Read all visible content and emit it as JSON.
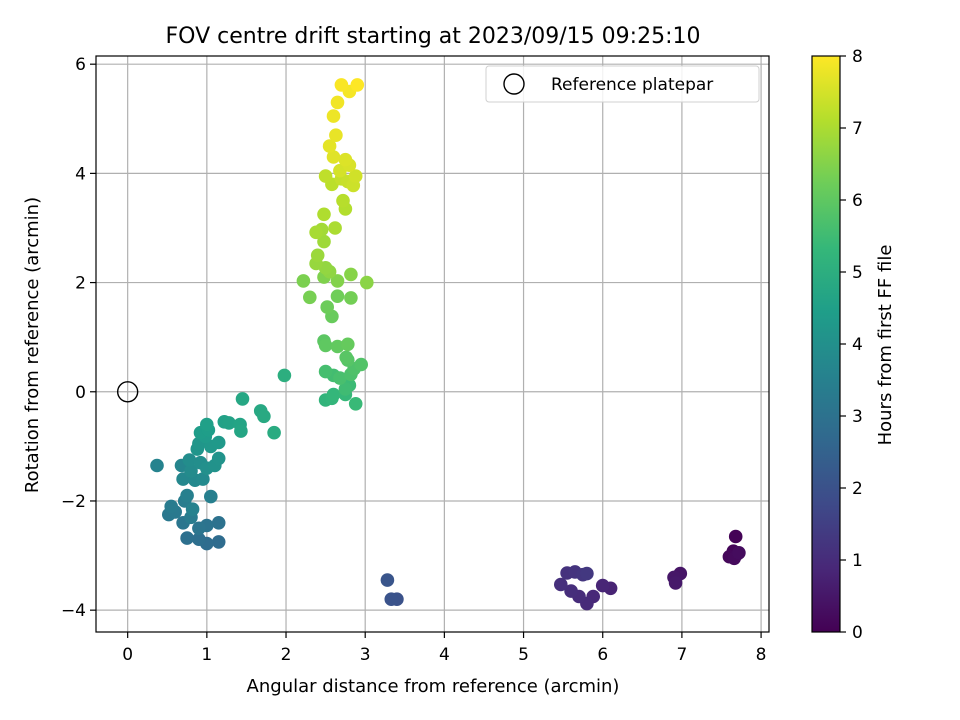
{
  "chart_data": {
    "type": "scatter",
    "title": "FOV centre drift starting at 2023/09/15 09:25:10",
    "xlabel": "Angular distance from reference (arcmin)",
    "ylabel": "Rotation from reference (arcmin)",
    "xlim": [
      -0.4,
      8.1
    ],
    "ylim": [
      -4.4,
      6.15
    ],
    "xticks": [
      0,
      1,
      2,
      3,
      4,
      5,
      6,
      7,
      8
    ],
    "yticks": [
      -4,
      -2,
      0,
      2,
      4,
      6
    ],
    "grid": true,
    "legend": {
      "placement": "upper right",
      "entries": [
        {
          "label": "Reference platepar",
          "marker": "hollow-circle"
        }
      ]
    },
    "reference_point": {
      "x": 0,
      "y": 0
    },
    "colormap": "viridis",
    "colorbar": {
      "label": "Hours from first FF file",
      "range": [
        0,
        8
      ],
      "ticks": [
        0,
        1,
        2,
        3,
        4,
        5,
        6,
        7,
        8
      ]
    },
    "series": [
      {
        "points": [
          {
            "x": 7.68,
            "y": -2.65,
            "c": 0.05
          },
          {
            "x": 7.65,
            "y": -2.92,
            "c": 0.1
          },
          {
            "x": 7.7,
            "y": -2.97,
            "c": 0.12
          },
          {
            "x": 7.6,
            "y": -3.02,
            "c": 0.15
          },
          {
            "x": 7.66,
            "y": -3.05,
            "c": 0.2
          },
          {
            "x": 7.72,
            "y": -2.95,
            "c": 0.25
          },
          {
            "x": 6.98,
            "y": -3.33,
            "c": 0.45
          },
          {
            "x": 6.9,
            "y": -3.4,
            "c": 0.5
          },
          {
            "x": 6.92,
            "y": -3.5,
            "c": 0.55
          },
          {
            "x": 6.1,
            "y": -3.6,
            "c": 0.8
          },
          {
            "x": 6.0,
            "y": -3.55,
            "c": 0.85
          },
          {
            "x": 5.88,
            "y": -3.75,
            "c": 0.9
          },
          {
            "x": 5.8,
            "y": -3.88,
            "c": 0.95
          },
          {
            "x": 5.7,
            "y": -3.75,
            "c": 1.0
          },
          {
            "x": 5.6,
            "y": -3.65,
            "c": 1.05
          },
          {
            "x": 5.47,
            "y": -3.53,
            "c": 1.1
          },
          {
            "x": 5.55,
            "y": -3.32,
            "c": 1.15
          },
          {
            "x": 5.65,
            "y": -3.3,
            "c": 1.2
          },
          {
            "x": 5.75,
            "y": -3.35,
            "c": 1.25
          },
          {
            "x": 5.8,
            "y": -3.33,
            "c": 1.3
          },
          {
            "x": 3.4,
            "y": -3.8,
            "c": 2.0
          },
          {
            "x": 3.33,
            "y": -3.8,
            "c": 2.05
          },
          {
            "x": 3.28,
            "y": -3.45,
            "c": 2.1
          },
          {
            "x": 1.15,
            "y": -2.75,
            "c": 2.8
          },
          {
            "x": 1.0,
            "y": -2.78,
            "c": 2.85
          },
          {
            "x": 0.9,
            "y": -2.7,
            "c": 2.9
          },
          {
            "x": 0.75,
            "y": -2.68,
            "c": 2.95
          },
          {
            "x": 1.15,
            "y": -2.4,
            "c": 3.0
          },
          {
            "x": 1.0,
            "y": -2.45,
            "c": 3.05
          },
          {
            "x": 0.9,
            "y": -2.5,
            "c": 3.1
          },
          {
            "x": 0.7,
            "y": -2.4,
            "c": 3.15
          },
          {
            "x": 0.52,
            "y": -2.25,
            "c": 3.2
          },
          {
            "x": 0.6,
            "y": -2.2,
            "c": 3.25
          },
          {
            "x": 0.55,
            "y": -2.1,
            "c": 3.3
          },
          {
            "x": 0.8,
            "y": -2.3,
            "c": 3.35
          },
          {
            "x": 0.72,
            "y": -2.0,
            "c": 3.4
          },
          {
            "x": 1.05,
            "y": -1.92,
            "c": 3.45
          },
          {
            "x": 0.75,
            "y": -1.9,
            "c": 3.5
          },
          {
            "x": 0.82,
            "y": -2.15,
            "c": 3.55
          },
          {
            "x": 0.37,
            "y": -1.35,
            "c": 3.6
          },
          {
            "x": 0.68,
            "y": -1.35,
            "c": 3.65
          },
          {
            "x": 0.7,
            "y": -1.6,
            "c": 3.7
          },
          {
            "x": 0.85,
            "y": -1.62,
            "c": 3.75
          },
          {
            "x": 0.95,
            "y": -1.6,
            "c": 3.8
          },
          {
            "x": 0.8,
            "y": -1.45,
            "c": 3.85
          },
          {
            "x": 0.78,
            "y": -1.25,
            "c": 3.9
          },
          {
            "x": 0.92,
            "y": -1.3,
            "c": 3.95
          },
          {
            "x": 1.0,
            "y": -1.4,
            "c": 4.0
          },
          {
            "x": 1.1,
            "y": -1.35,
            "c": 4.05
          },
          {
            "x": 1.15,
            "y": -1.22,
            "c": 4.1
          },
          {
            "x": 0.88,
            "y": -1.05,
            "c": 4.15
          },
          {
            "x": 0.9,
            "y": -0.95,
            "c": 4.2
          },
          {
            "x": 1.05,
            "y": -1.0,
            "c": 4.25
          },
          {
            "x": 1.15,
            "y": -0.93,
            "c": 4.3
          },
          {
            "x": 0.98,
            "y": -0.82,
            "c": 4.35
          },
          {
            "x": 0.92,
            "y": -0.75,
            "c": 4.4
          },
          {
            "x": 1.02,
            "y": -0.7,
            "c": 4.45
          },
          {
            "x": 1.0,
            "y": -0.6,
            "c": 4.5
          },
          {
            "x": 1.22,
            "y": -0.55,
            "c": 4.55
          },
          {
            "x": 1.28,
            "y": -0.57,
            "c": 4.6
          },
          {
            "x": 1.42,
            "y": -0.6,
            "c": 4.65
          },
          {
            "x": 1.43,
            "y": -0.72,
            "c": 4.7
          },
          {
            "x": 1.45,
            "y": -0.13,
            "c": 4.75
          },
          {
            "x": 1.68,
            "y": -0.35,
            "c": 4.8
          },
          {
            "x": 1.72,
            "y": -0.45,
            "c": 4.85
          },
          {
            "x": 1.85,
            "y": -0.75,
            "c": 4.9
          },
          {
            "x": 1.98,
            "y": 0.3,
            "c": 5.0
          },
          {
            "x": 2.5,
            "y": -0.15,
            "c": 5.2
          },
          {
            "x": 2.58,
            "y": -0.12,
            "c": 5.25
          },
          {
            "x": 2.6,
            "y": -0.05,
            "c": 5.3
          },
          {
            "x": 2.75,
            "y": -0.05,
            "c": 5.35
          },
          {
            "x": 2.88,
            "y": -0.22,
            "c": 5.4
          },
          {
            "x": 2.8,
            "y": 0.12,
            "c": 5.45
          },
          {
            "x": 2.75,
            "y": 0.05,
            "c": 5.5
          },
          {
            "x": 2.6,
            "y": 0.3,
            "c": 5.55
          },
          {
            "x": 2.5,
            "y": 0.37,
            "c": 5.6
          },
          {
            "x": 2.68,
            "y": 0.25,
            "c": 5.65
          },
          {
            "x": 2.82,
            "y": 0.32,
            "c": 5.7
          },
          {
            "x": 2.86,
            "y": 0.42,
            "c": 5.75
          },
          {
            "x": 2.95,
            "y": 0.5,
            "c": 5.8
          },
          {
            "x": 2.78,
            "y": 0.58,
            "c": 5.85
          },
          {
            "x": 2.76,
            "y": 0.63,
            "c": 5.9
          },
          {
            "x": 2.48,
            "y": 0.93,
            "c": 5.95
          },
          {
            "x": 2.5,
            "y": 0.85,
            "c": 6.0
          },
          {
            "x": 2.65,
            "y": 0.83,
            "c": 6.05
          },
          {
            "x": 2.78,
            "y": 0.87,
            "c": 6.1
          },
          {
            "x": 2.58,
            "y": 1.38,
            "c": 6.15
          },
          {
            "x": 2.52,
            "y": 1.55,
            "c": 6.2
          },
          {
            "x": 2.65,
            "y": 1.75,
            "c": 6.25
          },
          {
            "x": 2.82,
            "y": 1.72,
            "c": 6.3
          },
          {
            "x": 2.3,
            "y": 1.73,
            "c": 6.35
          },
          {
            "x": 2.22,
            "y": 2.03,
            "c": 6.4
          },
          {
            "x": 2.48,
            "y": 2.1,
            "c": 6.45
          },
          {
            "x": 2.65,
            "y": 2.03,
            "c": 6.5
          },
          {
            "x": 2.82,
            "y": 2.15,
            "c": 6.55
          },
          {
            "x": 3.02,
            "y": 2.0,
            "c": 6.6
          },
          {
            "x": 2.55,
            "y": 2.2,
            "c": 6.65
          },
          {
            "x": 2.5,
            "y": 2.27,
            "c": 6.7
          },
          {
            "x": 2.38,
            "y": 2.35,
            "c": 6.75
          },
          {
            "x": 2.4,
            "y": 2.5,
            "c": 6.8
          },
          {
            "x": 2.48,
            "y": 2.75,
            "c": 6.85
          },
          {
            "x": 2.45,
            "y": 2.97,
            "c": 6.9
          },
          {
            "x": 2.38,
            "y": 2.92,
            "c": 6.95
          },
          {
            "x": 2.62,
            "y": 3.0,
            "c": 7.0
          },
          {
            "x": 2.48,
            "y": 3.25,
            "c": 7.05
          },
          {
            "x": 2.75,
            "y": 3.35,
            "c": 7.1
          },
          {
            "x": 2.72,
            "y": 3.5,
            "c": 7.15
          },
          {
            "x": 2.58,
            "y": 3.8,
            "c": 7.2
          },
          {
            "x": 2.5,
            "y": 3.95,
            "c": 7.25
          },
          {
            "x": 2.7,
            "y": 3.9,
            "c": 7.3
          },
          {
            "x": 2.78,
            "y": 3.85,
            "c": 7.35
          },
          {
            "x": 2.85,
            "y": 3.78,
            "c": 7.4
          },
          {
            "x": 2.88,
            "y": 3.95,
            "c": 7.45
          },
          {
            "x": 2.68,
            "y": 4.05,
            "c": 7.5
          },
          {
            "x": 2.8,
            "y": 4.15,
            "c": 7.55
          },
          {
            "x": 2.75,
            "y": 4.25,
            "c": 7.6
          },
          {
            "x": 2.6,
            "y": 4.3,
            "c": 7.65
          },
          {
            "x": 2.55,
            "y": 4.5,
            "c": 7.7
          },
          {
            "x": 2.63,
            "y": 4.7,
            "c": 7.75
          },
          {
            "x": 2.6,
            "y": 5.05,
            "c": 7.8
          },
          {
            "x": 2.65,
            "y": 5.3,
            "c": 7.85
          },
          {
            "x": 2.8,
            "y": 5.5,
            "c": 7.9
          },
          {
            "x": 2.7,
            "y": 5.62,
            "c": 7.95
          },
          {
            "x": 2.9,
            "y": 5.62,
            "c": 8.0
          }
        ]
      }
    ]
  }
}
